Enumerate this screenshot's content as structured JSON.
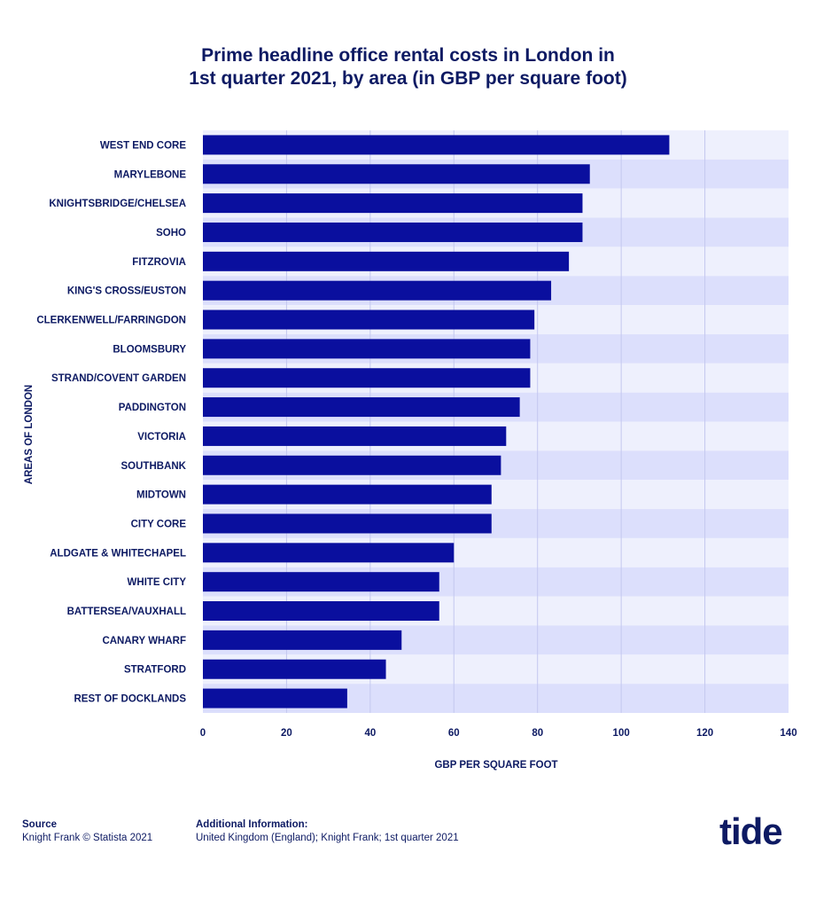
{
  "chart_data": {
    "type": "bar",
    "orientation": "horizontal",
    "title_lines": [
      "Prime headline office rental costs in London in",
      "1st quarter 2021, by area (in GBP per square foot)"
    ],
    "xlabel": "GBP PER SQUARE FOOT",
    "ylabel": "AREAS OF LONDON",
    "xlim": [
      0,
      140
    ],
    "xticks": [
      0,
      20,
      40,
      60,
      80,
      100,
      120,
      140
    ],
    "grid": true,
    "legend": "none",
    "categories": [
      "WEST END CORE",
      "MARYLEBONE",
      "KNIGHTSBRIDGE/CHELSEA",
      "SOHO",
      "FITZROVIA",
      "KING'S CROSS/EUSTON",
      "CLERKENWELL/FARRINGDON",
      "BLOOMSBURY",
      "STRAND/COVENT GARDEN",
      "PADDINGTON",
      "VICTORIA",
      "SOUTHBANK",
      "MIDTOWN",
      "CITY CORE",
      "ALDGATE & WHITECHAPEL",
      "WHITE CITY",
      "BATTERSEA/VAUXHALL",
      "CANARY WHARF",
      "STRATFORD",
      "REST OF DOCKLANDS"
    ],
    "values": [
      111.5,
      92.5,
      90.75,
      90.75,
      87.5,
      83.25,
      79.25,
      78.25,
      78.25,
      75.75,
      72.5,
      71.25,
      69,
      69,
      60,
      56.5,
      56.5,
      47.5,
      43.75,
      34.5
    ],
    "colors": {
      "bar": "#0a0f9e",
      "band_light": "#eef0fd",
      "band_dark": "#dcdffc",
      "grid": "#c4c8ef",
      "text": "#0d1a63"
    }
  },
  "footer": {
    "source_head": "Source",
    "source_body": "Knight Frank © Statista 2021",
    "info_head": "Additional Information:",
    "info_body": "United Kingdom (England); Knight Frank; 1st quarter 2021"
  },
  "brand": {
    "logo_text": "tide"
  }
}
